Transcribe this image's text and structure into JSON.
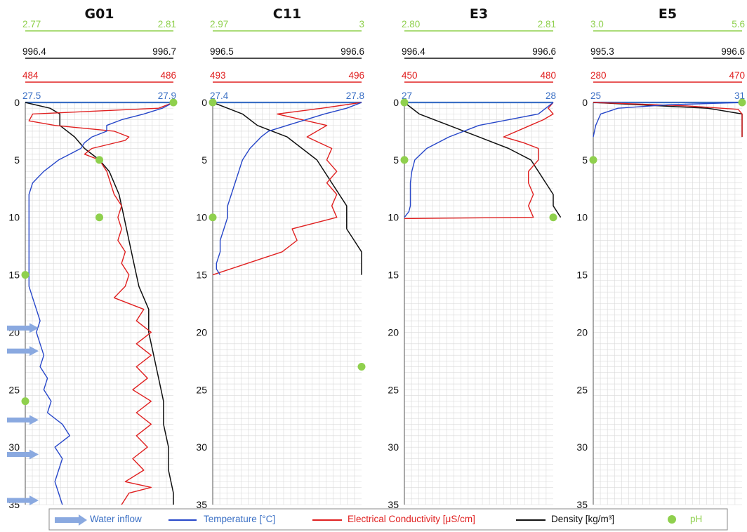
{
  "chart_data": {
    "type": "line",
    "depth_ticks": [
      "0",
      "5",
      "10",
      "15",
      "20",
      "25",
      "30",
      "35"
    ],
    "y_range": [
      0,
      35
    ],
    "grid": true,
    "legend_position": "bottom",
    "colors": {
      "temperature": "#2747c9",
      "conductivity": "#e02020",
      "density": "#111111",
      "ph": "#8fd04d",
      "water_inflow": "#8aa9e0"
    },
    "legend": {
      "water_inflow": "Water inflow",
      "temperature": "Temperature  [°C]",
      "conductivity": "Electrical Conductivity  [μS/cm]",
      "density": "Density  [kg/m³]",
      "ph": "pH"
    },
    "panels": [
      {
        "title": "G01",
        "ph_range": [
          "2.77",
          "2.81"
        ],
        "density_range": [
          "996.4",
          "996.7"
        ],
        "ec_range": [
          "484",
          "486"
        ],
        "temp_range": [
          "27.5",
          "27.9"
        ],
        "ph_points": [
          [
            2.81,
            0
          ],
          [
            2.79,
            5
          ],
          [
            2.79,
            10
          ],
          [
            2.77,
            15
          ],
          [
            2.77,
            26
          ]
        ],
        "water_inflow_depths": [
          20,
          22,
          28,
          31,
          35
        ],
        "temperature": [
          [
            27.9,
            0
          ],
          [
            27.87,
            0.5
          ],
          [
            27.82,
            1
          ],
          [
            27.76,
            1.5
          ],
          [
            27.72,
            2
          ],
          [
            27.72,
            2.5
          ],
          [
            27.68,
            3
          ],
          [
            27.66,
            3.5
          ],
          [
            27.65,
            4
          ],
          [
            27.62,
            4.5
          ],
          [
            27.59,
            5
          ],
          [
            27.55,
            6
          ],
          [
            27.52,
            7
          ],
          [
            27.51,
            8
          ],
          [
            27.51,
            10
          ],
          [
            27.51,
            13
          ],
          [
            27.51,
            16
          ],
          [
            27.52,
            17
          ],
          [
            27.53,
            18
          ],
          [
            27.54,
            19
          ],
          [
            27.53,
            20
          ],
          [
            27.54,
            21
          ],
          [
            27.55,
            22
          ],
          [
            27.54,
            23
          ],
          [
            27.56,
            24
          ],
          [
            27.55,
            25
          ],
          [
            27.57,
            26
          ],
          [
            27.56,
            27
          ],
          [
            27.6,
            28
          ],
          [
            27.62,
            29
          ],
          [
            27.58,
            30
          ],
          [
            27.6,
            31
          ],
          [
            27.59,
            32
          ],
          [
            27.58,
            33
          ],
          [
            27.59,
            34
          ],
          [
            27.6,
            35
          ]
        ],
        "conductivity": [
          [
            486,
            0
          ],
          [
            485.8,
            0.5
          ],
          [
            484.1,
            1
          ],
          [
            484.05,
            1.6
          ],
          [
            484.4,
            2
          ],
          [
            485.2,
            2.5
          ],
          [
            485.4,
            3
          ],
          [
            485.35,
            3.3
          ],
          [
            484.9,
            4
          ],
          [
            484.8,
            4.5
          ],
          [
            485.0,
            5
          ],
          [
            485.1,
            6
          ],
          [
            485.15,
            7
          ],
          [
            485.2,
            8
          ],
          [
            485.3,
            9
          ],
          [
            485.25,
            10
          ],
          [
            485.3,
            11
          ],
          [
            485.25,
            12
          ],
          [
            485.35,
            13
          ],
          [
            485.3,
            14
          ],
          [
            485.4,
            15
          ],
          [
            485.35,
            16
          ],
          [
            485.2,
            17
          ],
          [
            485.6,
            18
          ],
          [
            485.5,
            19
          ],
          [
            485.7,
            20
          ],
          [
            485.5,
            21
          ],
          [
            485.7,
            22
          ],
          [
            485.5,
            23
          ],
          [
            485.65,
            24
          ],
          [
            485.45,
            25
          ],
          [
            485.7,
            26
          ],
          [
            485.5,
            27
          ],
          [
            485.7,
            28
          ],
          [
            485.5,
            29
          ],
          [
            485.65,
            30
          ],
          [
            485.45,
            31
          ],
          [
            485.6,
            32
          ],
          [
            485.35,
            33
          ],
          [
            485.7,
            33.5
          ],
          [
            485.4,
            34
          ],
          [
            485.3,
            35
          ]
        ],
        "density": [
          [
            996.4,
            0
          ],
          [
            996.45,
            0.5
          ],
          [
            996.47,
            1
          ],
          [
            996.47,
            2
          ],
          [
            996.5,
            3
          ],
          [
            996.52,
            4
          ],
          [
            996.55,
            5
          ],
          [
            996.57,
            6
          ],
          [
            996.59,
            8
          ],
          [
            996.6,
            10
          ],
          [
            996.61,
            12
          ],
          [
            996.62,
            14
          ],
          [
            996.63,
            16
          ],
          [
            996.65,
            18
          ],
          [
            996.65,
            20
          ],
          [
            996.66,
            22
          ],
          [
            996.67,
            24
          ],
          [
            996.68,
            26
          ],
          [
            996.68,
            28
          ],
          [
            996.69,
            30
          ],
          [
            996.69,
            32
          ],
          [
            996.7,
            34
          ],
          [
            996.7,
            35
          ]
        ]
      },
      {
        "title": "C11",
        "ph_range": [
          "2.97",
          "3"
        ],
        "density_range": [
          "996.5",
          "996.6"
        ],
        "ec_range": [
          "493",
          "496"
        ],
        "temp_range": [
          "27.4",
          "27.8"
        ],
        "ph_points": [
          [
            2.97,
            0
          ],
          [
            2.97,
            10
          ],
          [
            3.0,
            23
          ]
        ],
        "temperature": [
          [
            27.8,
            0
          ],
          [
            27.76,
            0.5
          ],
          [
            27.7,
            1
          ],
          [
            27.65,
            1.5
          ],
          [
            27.6,
            2
          ],
          [
            27.55,
            2.5
          ],
          [
            27.53,
            3
          ],
          [
            27.5,
            4
          ],
          [
            27.48,
            5
          ],
          [
            27.47,
            6
          ],
          [
            27.46,
            7
          ],
          [
            27.45,
            8
          ],
          [
            27.44,
            9
          ],
          [
            27.44,
            10
          ],
          [
            27.43,
            11
          ],
          [
            27.42,
            12
          ],
          [
            27.42,
            13
          ],
          [
            27.41,
            14
          ],
          [
            27.41,
            14.5
          ],
          [
            27.42,
            15
          ]
        ],
        "conductivity": [
          [
            496,
            0
          ],
          [
            495.2,
            0.5
          ],
          [
            494.3,
            1
          ],
          [
            495.3,
            2
          ],
          [
            494.9,
            3
          ],
          [
            495.4,
            4
          ],
          [
            495.3,
            5
          ],
          [
            495.5,
            6
          ],
          [
            495.3,
            7
          ],
          [
            495.5,
            8
          ],
          [
            495.4,
            9
          ],
          [
            495.5,
            10
          ],
          [
            494.6,
            11
          ],
          [
            494.7,
            12
          ],
          [
            494.4,
            13
          ],
          [
            493.7,
            14
          ],
          [
            493.0,
            15
          ]
        ],
        "density": [
          [
            996.5,
            0
          ],
          [
            996.51,
            0.5
          ],
          [
            996.52,
            1
          ],
          [
            996.53,
            2
          ],
          [
            996.55,
            3
          ],
          [
            996.56,
            4
          ],
          [
            996.57,
            5
          ],
          [
            996.58,
            7
          ],
          [
            996.59,
            9
          ],
          [
            996.59,
            11
          ],
          [
            996.6,
            13
          ],
          [
            996.6,
            14
          ],
          [
            996.6,
            15
          ]
        ]
      },
      {
        "title": "E3",
        "ph_range": [
          "2.80",
          "2.81"
        ],
        "density_range": [
          "996.4",
          "996.6"
        ],
        "ec_range": [
          "450",
          "480"
        ],
        "temp_range": [
          "27",
          "28"
        ],
        "ph_points": [
          [
            2.8,
            0
          ],
          [
            2.8,
            5
          ],
          [
            2.81,
            10
          ]
        ],
        "temperature": [
          [
            28,
            0
          ],
          [
            27.95,
            0.5
          ],
          [
            27.9,
            1
          ],
          [
            27.7,
            1.5
          ],
          [
            27.5,
            2
          ],
          [
            27.3,
            3
          ],
          [
            27.15,
            4
          ],
          [
            27.07,
            5
          ],
          [
            27.05,
            6
          ],
          [
            27.04,
            7
          ],
          [
            27.04,
            8
          ],
          [
            27.04,
            9
          ],
          [
            27.03,
            9.5
          ],
          [
            27.0,
            10
          ]
        ],
        "conductivity": [
          [
            480,
            0
          ],
          [
            479,
            0.5
          ],
          [
            480,
            1
          ],
          [
            478,
            1.5
          ],
          [
            470,
            3
          ],
          [
            474,
            3.5
          ],
          [
            477,
            4
          ],
          [
            477,
            5
          ],
          [
            475,
            6
          ],
          [
            475,
            7
          ],
          [
            476,
            8
          ],
          [
            475,
            9
          ],
          [
            476,
            10
          ],
          [
            450,
            10.1
          ]
        ],
        "density": [
          [
            996.4,
            0
          ],
          [
            996.42,
            1
          ],
          [
            996.46,
            2
          ],
          [
            996.5,
            3
          ],
          [
            996.54,
            4
          ],
          [
            996.57,
            5
          ],
          [
            996.58,
            6
          ],
          [
            996.59,
            7
          ],
          [
            996.6,
            8
          ],
          [
            996.6,
            9
          ],
          [
            996.61,
            10
          ]
        ]
      },
      {
        "title": "E5",
        "ph_range": [
          "3.0",
          "5.6"
        ],
        "density_range": [
          "995.3",
          "996.6"
        ],
        "ec_range": [
          "280",
          "470"
        ],
        "temp_range": [
          "25",
          "31"
        ],
        "ph_points": [
          [
            5.6,
            0
          ],
          [
            3.0,
            5
          ]
        ],
        "temperature": [
          [
            31,
            0
          ],
          [
            28,
            0.2
          ],
          [
            26,
            0.5
          ],
          [
            25.3,
            1
          ],
          [
            25.1,
            2
          ],
          [
            25.0,
            3
          ]
        ],
        "conductivity": [
          [
            280,
            0
          ],
          [
            320,
            0.1
          ],
          [
            400,
            0.3
          ],
          [
            465,
            0.6
          ],
          [
            470,
            1
          ],
          [
            470,
            3
          ]
        ],
        "density": [
          [
            995.3,
            0
          ],
          [
            995.7,
            0.2
          ],
          [
            996.3,
            0.5
          ],
          [
            996.6,
            1
          ],
          [
            996.6,
            3
          ]
        ]
      }
    ]
  }
}
